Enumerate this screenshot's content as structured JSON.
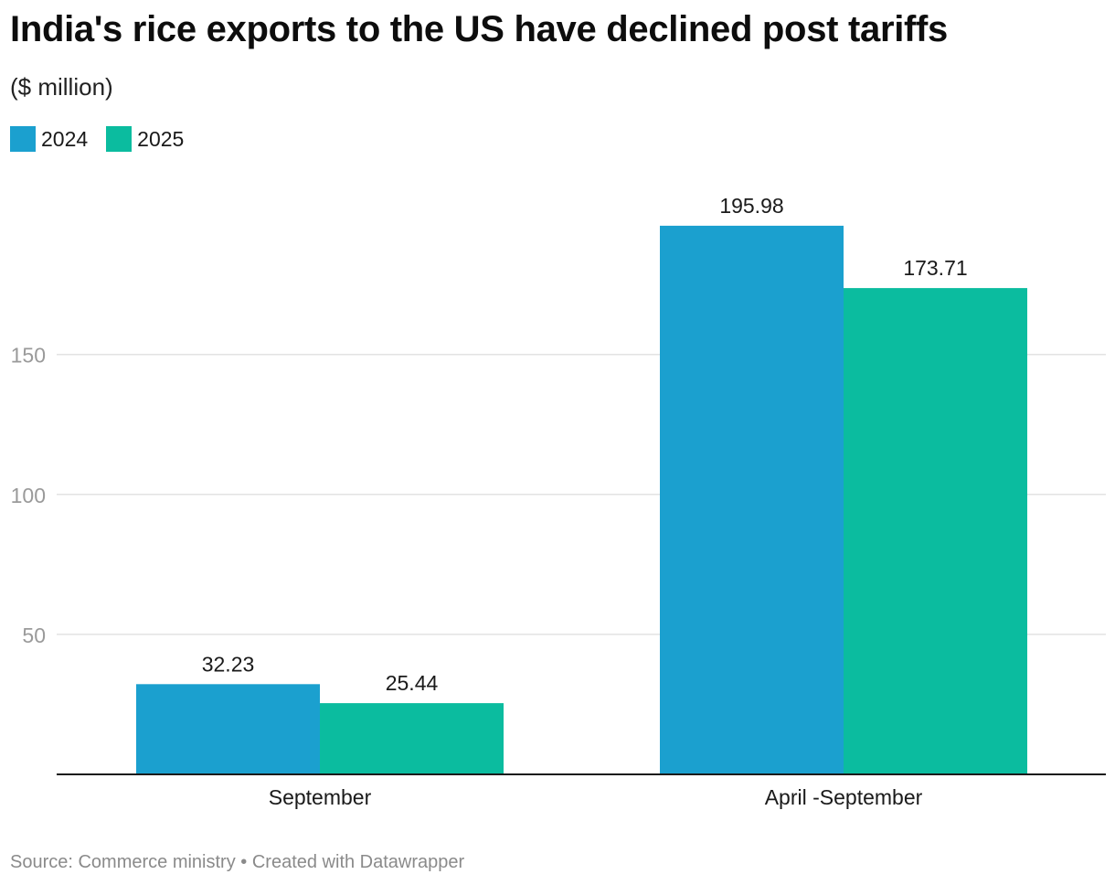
{
  "title": "India's rice exports to the US have declined post tariffs",
  "subtitle": "($ million)",
  "footer": {
    "source": "Source: Commerce ministry",
    "separator": " • ",
    "credit": "Created with Datawrapper"
  },
  "chart_data": {
    "type": "bar",
    "title": "India's rice exports to the US have declined post tariffs",
    "subtitle": "($ million)",
    "categories": [
      "September",
      "April -September"
    ],
    "series": [
      {
        "name": "2024",
        "color": "#1ba0cf",
        "values": [
          32.23,
          195.98
        ]
      },
      {
        "name": "2025",
        "color": "#0bbc9f",
        "values": [
          25.44,
          173.71
        ]
      }
    ],
    "yticks": [
      50,
      100,
      150
    ],
    "ylim": [
      0,
      200
    ],
    "grid": true,
    "legend": "top-left",
    "value_labels": [
      "32.23",
      "25.44",
      "195.98",
      "173.71"
    ]
  }
}
